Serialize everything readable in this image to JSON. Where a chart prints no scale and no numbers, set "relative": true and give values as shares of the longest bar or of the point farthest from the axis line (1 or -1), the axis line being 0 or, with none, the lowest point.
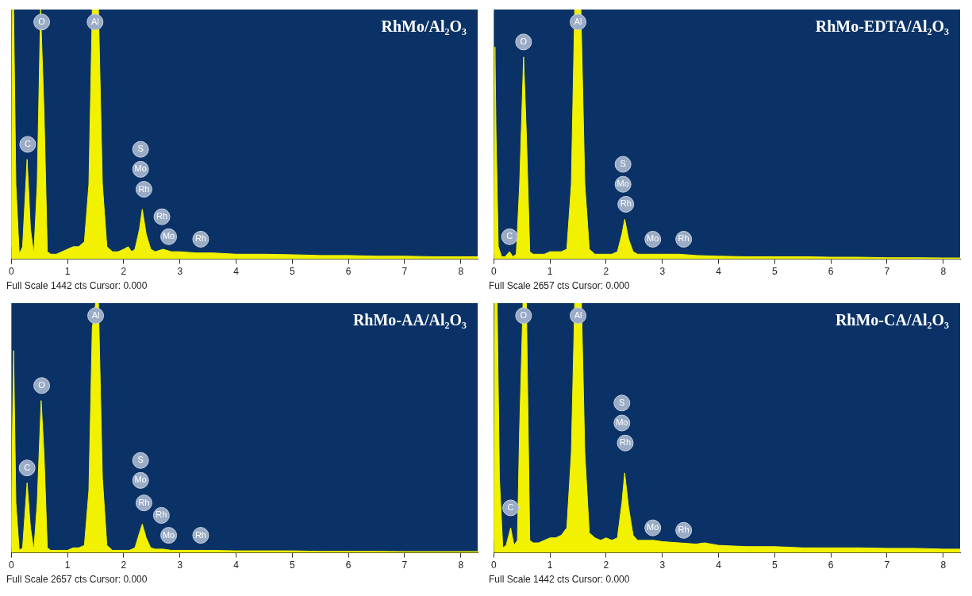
{
  "chart_data": [
    {
      "type": "area",
      "relative": true,
      "title": "RhMo/Al₂O₃",
      "xlim": [
        0,
        8.3
      ],
      "xticks": [
        0,
        1,
        2,
        3,
        4,
        5,
        6,
        7,
        8
      ],
      "x": [
        0,
        0.02,
        0.04,
        0.08,
        0.14,
        0.2,
        0.28,
        0.34,
        0.4,
        0.46,
        0.52,
        0.58,
        0.64,
        0.7,
        0.8,
        0.9,
        1.0,
        1.1,
        1.2,
        1.3,
        1.38,
        1.44,
        1.49,
        1.55,
        1.62,
        1.7,
        1.8,
        1.9,
        2.0,
        2.08,
        2.14,
        2.2,
        2.28,
        2.33,
        2.4,
        2.48,
        2.56,
        2.7,
        2.85,
        3.0,
        3.3,
        3.6,
        4.0,
        4.5,
        5,
        5.5,
        6,
        6.5,
        7,
        7.5,
        8,
        8.3
      ],
      "series": [
        {
          "color": "#f2f200",
          "values": [
            0.05,
            1,
            1,
            0.3,
            0.02,
            0.05,
            0.4,
            0.12,
            0.02,
            0.3,
            1,
            0.6,
            0.03,
            0.02,
            0.02,
            0.03,
            0.04,
            0.05,
            0.05,
            0.07,
            0.3,
            1,
            1,
            1,
            0.3,
            0.05,
            0.03,
            0.03,
            0.04,
            0.05,
            0.03,
            0.04,
            0.12,
            0.2,
            0.1,
            0.04,
            0.03,
            0.04,
            0.03,
            0.03,
            0.025,
            0.025,
            0.02,
            0.02,
            0.018,
            0.015,
            0.015,
            0.012,
            0.012,
            0.01,
            0.01,
            0.01
          ]
        }
      ],
      "annotations": [
        {
          "text": "O",
          "x": 0.54,
          "y": 0.95
        },
        {
          "text": "Al",
          "x": 1.49,
          "y": 0.95
        },
        {
          "text": "C",
          "x": 0.29,
          "y": 0.46
        },
        {
          "text": "S",
          "x": 2.3,
          "y": 0.44
        },
        {
          "text": "Mo",
          "x": 2.3,
          "y": 0.36
        },
        {
          "text": "Rh",
          "x": 2.36,
          "y": 0.28
        },
        {
          "text": "Rh",
          "x": 2.68,
          "y": 0.17
        },
        {
          "text": "Mo",
          "x": 2.8,
          "y": 0.09
        },
        {
          "text": "Rh",
          "x": 3.37,
          "y": 0.08
        },
        "Full Scale 1442 cts Cursor: 0.000"
      ]
    },
    {
      "type": "area",
      "relative": true,
      "title": "RhMo-EDTA/Al₂O₃",
      "xlim": [
        0,
        8.3
      ],
      "xticks": [
        0,
        1,
        2,
        3,
        4,
        5,
        6,
        7,
        8
      ],
      "x": [
        0,
        0.02,
        0.04,
        0.08,
        0.14,
        0.2,
        0.28,
        0.34,
        0.4,
        0.46,
        0.53,
        0.58,
        0.64,
        0.7,
        0.8,
        0.9,
        1.0,
        1.1,
        1.2,
        1.3,
        1.38,
        1.44,
        1.49,
        1.55,
        1.62,
        1.7,
        1.8,
        1.9,
        2.0,
        2.1,
        2.2,
        2.28,
        2.33,
        2.4,
        2.48,
        2.56,
        2.7,
        2.85,
        3.0,
        3.3,
        3.6,
        4.0,
        4.5,
        5,
        5.5,
        6,
        6.5,
        7,
        7.5,
        8,
        8.3
      ],
      "series": [
        {
          "color": "#f2f200",
          "values": [
            0.02,
            0.85,
            0.5,
            0.05,
            0.01,
            0.01,
            0.03,
            0.01,
            0.02,
            0.3,
            0.81,
            0.5,
            0.03,
            0.02,
            0.02,
            0.02,
            0.03,
            0.03,
            0.03,
            0.04,
            0.3,
            1,
            1,
            1,
            0.3,
            0.04,
            0.02,
            0.02,
            0.02,
            0.02,
            0.03,
            0.1,
            0.16,
            0.08,
            0.03,
            0.02,
            0.02,
            0.02,
            0.02,
            0.02,
            0.015,
            0.012,
            0.01,
            0.01,
            0.01,
            0.008,
            0.008,
            0.006,
            0.006,
            0.005,
            0.005
          ]
        }
      ],
      "annotations": [
        {
          "text": "O",
          "x": 0.53,
          "y": 0.87
        },
        {
          "text": "Al",
          "x": 1.5,
          "y": 0.95
        },
        {
          "text": "C",
          "x": 0.28,
          "y": 0.09
        },
        {
          "text": "S",
          "x": 2.3,
          "y": 0.38
        },
        {
          "text": "Mo",
          "x": 2.3,
          "y": 0.3
        },
        {
          "text": "Rh",
          "x": 2.35,
          "y": 0.22
        },
        {
          "text": "Mo",
          "x": 2.83,
          "y": 0.08
        },
        {
          "text": "Rh",
          "x": 3.38,
          "y": 0.08
        },
        "Full Scale 2657 cts Cursor: 0.000"
      ]
    },
    {
      "type": "area",
      "relative": true,
      "title": "RhMo-AA/Al₂O₃",
      "xlim": [
        0,
        8.3
      ],
      "xticks": [
        0,
        1,
        2,
        3,
        4,
        5,
        6,
        7,
        8
      ],
      "x": [
        0,
        0.02,
        0.04,
        0.08,
        0.14,
        0.2,
        0.28,
        0.34,
        0.4,
        0.46,
        0.53,
        0.58,
        0.64,
        0.7,
        0.8,
        0.9,
        1.0,
        1.1,
        1.2,
        1.3,
        1.38,
        1.44,
        1.5,
        1.55,
        1.62,
        1.7,
        1.8,
        1.9,
        2.0,
        2.1,
        2.2,
        2.28,
        2.33,
        2.4,
        2.48,
        2.56,
        2.7,
        2.85,
        3.0,
        3.3,
        3.6,
        4.0,
        4.5,
        5,
        5.5,
        6,
        6.5,
        7,
        7.5,
        8,
        8.3
      ],
      "series": [
        {
          "color": "#f2f200",
          "values": [
            0.02,
            0.5,
            0.81,
            0.2,
            0.01,
            0.02,
            0.28,
            0.1,
            0.01,
            0.2,
            0.61,
            0.4,
            0.02,
            0.01,
            0.01,
            0.01,
            0.01,
            0.02,
            0.02,
            0.03,
            0.25,
            0.9,
            1,
            1,
            0.3,
            0.03,
            0.01,
            0.01,
            0.01,
            0.01,
            0.02,
            0.08,
            0.115,
            0.06,
            0.02,
            0.015,
            0.015,
            0.01,
            0.01,
            0.01,
            0.01,
            0.008,
            0.008,
            0.008,
            0.006,
            0.006,
            0.006,
            0.005,
            0.005,
            0.005,
            0.005
          ]
        }
      ],
      "annotations": [
        {
          "text": "Al",
          "x": 1.5,
          "y": 0.95
        },
        {
          "text": "O",
          "x": 0.54,
          "y": 0.67
        },
        {
          "text": "C",
          "x": 0.28,
          "y": 0.34
        },
        {
          "text": "S",
          "x": 2.3,
          "y": 0.37
        },
        {
          "text": "Mo",
          "x": 2.3,
          "y": 0.29
        },
        {
          "text": "Rh",
          "x": 2.36,
          "y": 0.2
        },
        {
          "text": "Rh",
          "x": 2.67,
          "y": 0.15
        },
        {
          "text": "Mo",
          "x": 2.8,
          "y": 0.07
        },
        {
          "text": "Rh",
          "x": 3.37,
          "y": 0.07
        },
        "Full Scale 2657 cts Cursor: 0.000"
      ]
    },
    {
      "type": "area",
      "relative": true,
      "title": "RhMo-CA/Al₂O₃",
      "xlim": [
        0,
        8.3
      ],
      "xticks": [
        0,
        1,
        2,
        3,
        4,
        5,
        6,
        7,
        8
      ],
      "x": [
        0,
        0.02,
        0.06,
        0.1,
        0.16,
        0.22,
        0.3,
        0.36,
        0.42,
        0.46,
        0.52,
        0.58,
        0.64,
        0.7,
        0.8,
        0.9,
        1.0,
        1.1,
        1.2,
        1.3,
        1.38,
        1.44,
        1.5,
        1.56,
        1.62,
        1.7,
        1.8,
        1.9,
        2.0,
        2.1,
        2.2,
        2.28,
        2.33,
        2.4,
        2.48,
        2.56,
        2.7,
        2.85,
        3.0,
        3.3,
        3.6,
        3.75,
        4.0,
        4.5,
        5,
        5.5,
        6,
        6.5,
        7,
        7.5,
        8,
        8.3
      ],
      "series": [
        {
          "color": "#f2f200",
          "values": [
            0.05,
            1,
            1,
            0.3,
            0.02,
            0.03,
            0.1,
            0.03,
            0.05,
            0.5,
            1,
            1,
            0.05,
            0.04,
            0.04,
            0.05,
            0.06,
            0.06,
            0.07,
            0.1,
            0.4,
            1,
            1,
            1,
            0.4,
            0.08,
            0.06,
            0.05,
            0.06,
            0.05,
            0.06,
            0.2,
            0.32,
            0.18,
            0.07,
            0.05,
            0.05,
            0.05,
            0.045,
            0.04,
            0.035,
            0.04,
            0.03,
            0.025,
            0.025,
            0.02,
            0.02,
            0.02,
            0.018,
            0.018,
            0.015,
            0.015
          ]
        }
      ],
      "annotations": [
        {
          "text": "O",
          "x": 0.53,
          "y": 0.95
        },
        {
          "text": "Al",
          "x": 1.5,
          "y": 0.95
        },
        {
          "text": "C",
          "x": 0.3,
          "y": 0.18
        },
        {
          "text": "S",
          "x": 2.28,
          "y": 0.6
        },
        {
          "text": "Mo",
          "x": 2.28,
          "y": 0.52
        },
        {
          "text": "Rh",
          "x": 2.34,
          "y": 0.44
        },
        {
          "text": "Mo",
          "x": 2.83,
          "y": 0.1
        },
        {
          "text": "Rh",
          "x": 3.38,
          "y": 0.09
        },
        "Full Scale 1442 cts Cursor: 0.000"
      ]
    }
  ]
}
